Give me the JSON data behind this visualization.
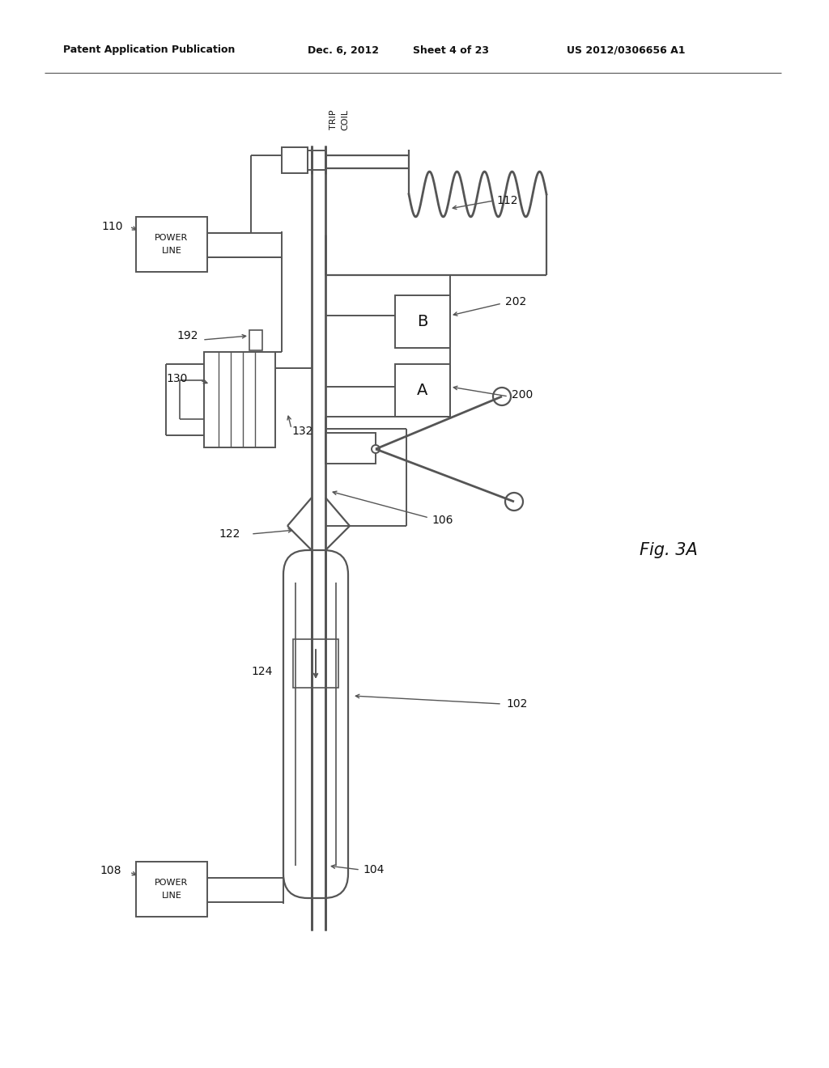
{
  "bg_color": "#ffffff",
  "line_color": "#555555",
  "text_color": "#111111",
  "header_left": "Patent Application Publication",
  "header_mid": "Dec. 6, 2012",
  "header_mid2": "Sheet 4 of 23",
  "header_right": "US 2012/0306656 A1",
  "fig_label": "Fig. 3A"
}
